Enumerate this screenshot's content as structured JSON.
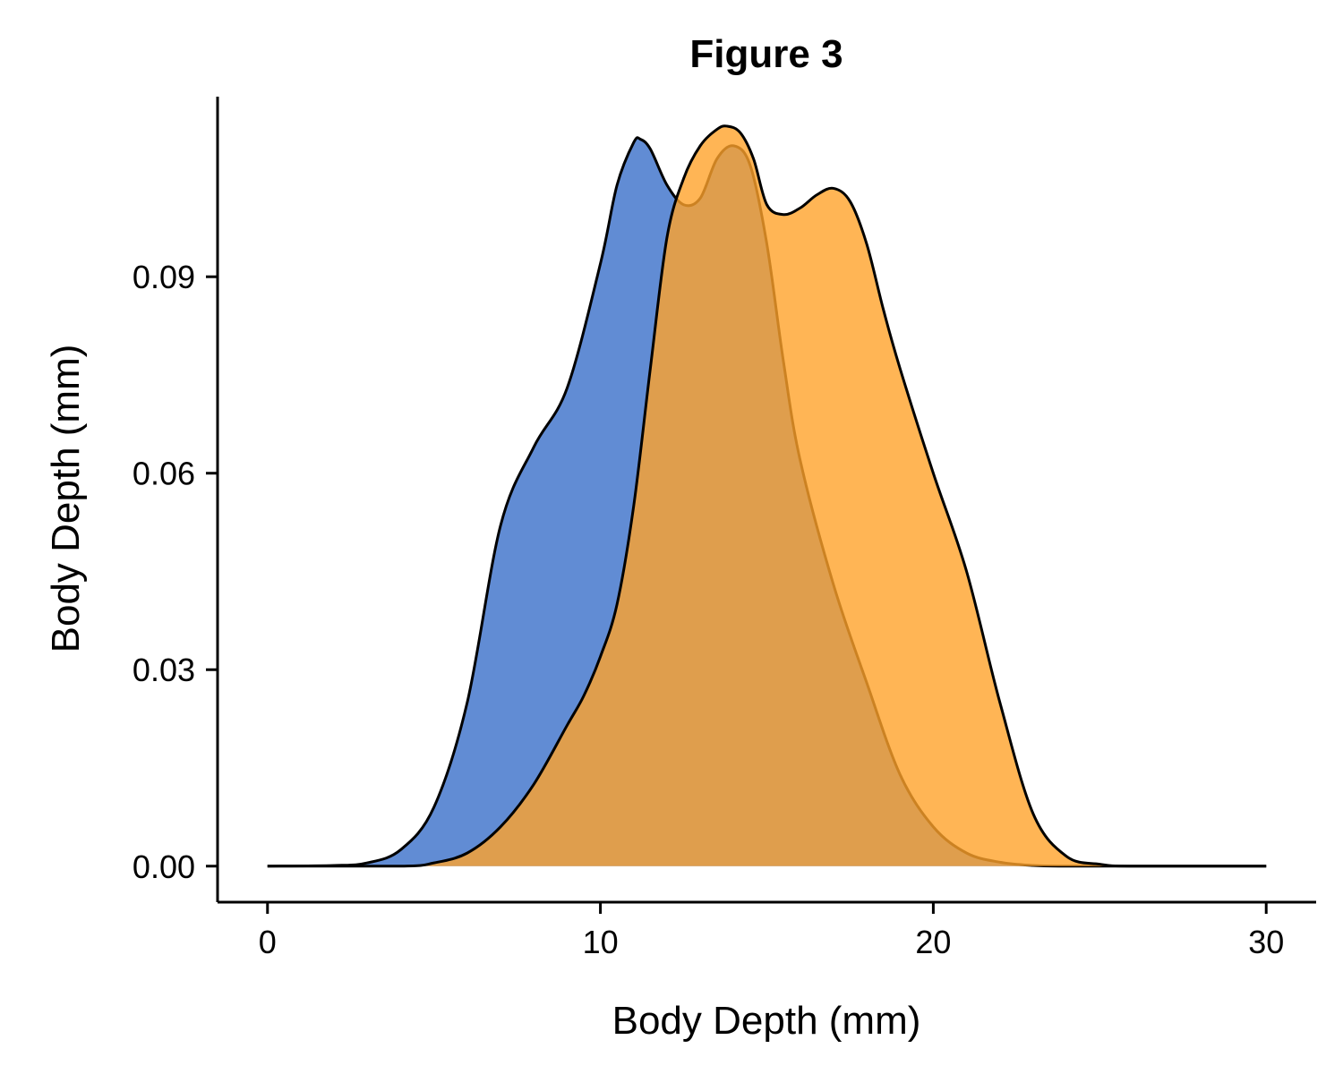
{
  "chart_data": {
    "type": "area",
    "title": "Figure 3",
    "xlabel": "Body Depth (mm)",
    "ylabel": "Body Depth (mm)",
    "xlim": [
      -1.5,
      31.5
    ],
    "ylim": [
      -0.0055,
      0.1175
    ],
    "x_ticks": [
      0,
      10,
      20,
      30
    ],
    "x_tick_labels": [
      "0",
      "10",
      "20",
      "30"
    ],
    "y_ticks": [
      0.0,
      0.03,
      0.06,
      0.09
    ],
    "y_tick_labels": [
      "0.00",
      "0.03",
      "0.06",
      "0.09"
    ],
    "grid": false,
    "legend": "none",
    "series": [
      {
        "color": "#3A6FC9",
        "x": [
          0,
          2,
          3,
          4,
          5,
          6,
          7,
          8,
          9,
          10,
          10.5,
          11,
          11.2,
          11.5,
          12,
          12.5,
          13,
          13.5,
          14,
          14.5,
          15,
          15.5,
          16,
          17,
          18,
          19,
          20,
          21,
          22,
          23,
          24,
          25,
          30
        ],
        "values": [
          0,
          0.0001,
          0.0005,
          0.0025,
          0.009,
          0.025,
          0.052,
          0.064,
          0.073,
          0.092,
          0.104,
          0.1105,
          0.111,
          0.1095,
          0.104,
          0.101,
          0.102,
          0.108,
          0.11,
          0.107,
          0.095,
          0.077,
          0.062,
          0.043,
          0.028,
          0.014,
          0.006,
          0.002,
          0.0006,
          0.0001,
          0,
          0,
          0
        ]
      },
      {
        "color": "#FFA22B",
        "x": [
          0,
          4,
          5,
          6,
          7,
          8,
          9,
          9.5,
          10,
          10.5,
          11,
          11.5,
          12,
          12.5,
          13,
          13.5,
          13.8,
          14.2,
          14.6,
          15,
          15.5,
          16,
          16.5,
          17,
          17.5,
          18,
          18.5,
          19,
          20,
          21,
          22,
          23,
          24,
          25,
          26,
          30
        ],
        "values": [
          0,
          0,
          0.0005,
          0.002,
          0.006,
          0.0125,
          0.0215,
          0.026,
          0.032,
          0.04,
          0.055,
          0.076,
          0.096,
          0.105,
          0.11,
          0.1125,
          0.113,
          0.112,
          0.108,
          0.101,
          0.0995,
          0.1005,
          0.1025,
          0.1035,
          0.1015,
          0.095,
          0.085,
          0.076,
          0.06,
          0.045,
          0.025,
          0.008,
          0.0015,
          0.0003,
          0,
          0
        ]
      }
    ]
  }
}
